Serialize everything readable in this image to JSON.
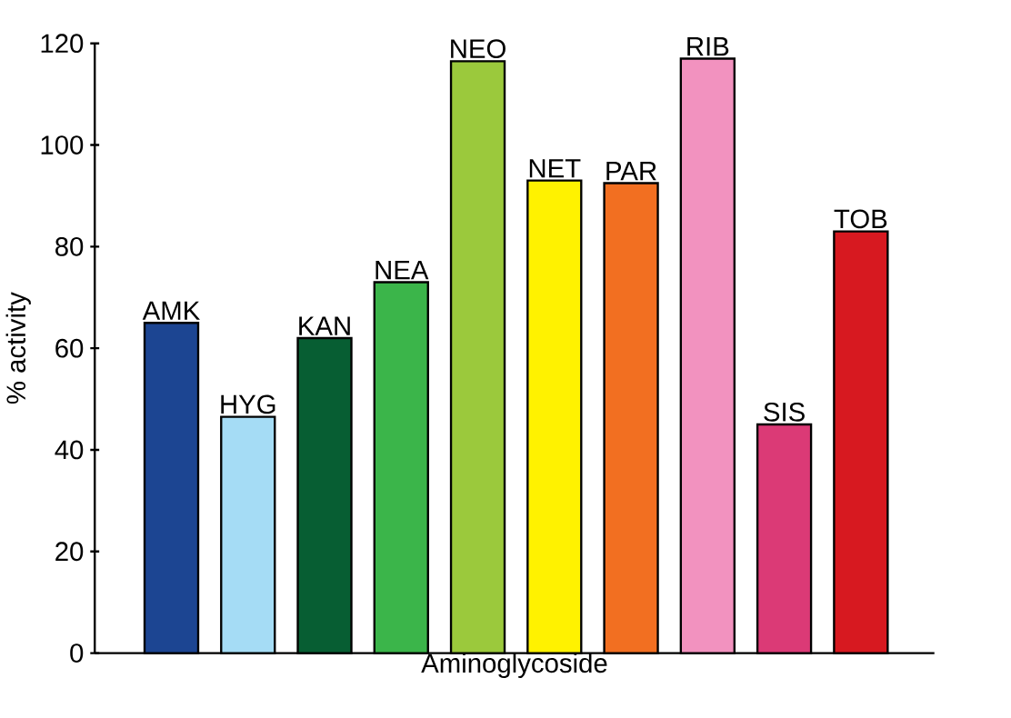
{
  "chart_data": {
    "type": "bar",
    "categories": [
      "AMK",
      "HYG",
      "KAN",
      "NEA",
      "NEO",
      "NET",
      "PAR",
      "RIB",
      "SIS",
      "TOB"
    ],
    "values": [
      65,
      46.5,
      62,
      73,
      116.5,
      93,
      92.5,
      117,
      45,
      83
    ],
    "colors": [
      "#1c4592",
      "#a5dcf5",
      "#075e33",
      "#3bb54a",
      "#9bc93c",
      "#fff200",
      "#f26f21",
      "#f292bf",
      "#db3a76",
      "#d71920"
    ],
    "xlabel": "Aminoglycoside",
    "ylabel": "% activity",
    "ylim": [
      0,
      120
    ],
    "yticks": [
      0,
      20,
      40,
      60,
      80,
      100,
      120
    ]
  }
}
